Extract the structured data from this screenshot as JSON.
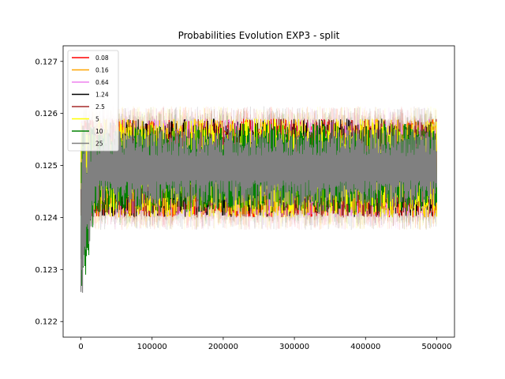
{
  "chart_data": {
    "type": "line",
    "title": "Probabilities Evolution EXP3  - split",
    "xlabel": "",
    "ylabel": "",
    "xlim": [
      -25000,
      525000
    ],
    "ylim": [
      0.1217,
      0.1273
    ],
    "x_ticks": [
      0,
      100000,
      200000,
      300000,
      400000,
      500000
    ],
    "x_tick_labels": [
      "0",
      "100000",
      "200000",
      "300000",
      "400000",
      "500000"
    ],
    "y_ticks": [
      0.122,
      0.123,
      0.124,
      0.125,
      0.126,
      0.127
    ],
    "y_tick_labels": [
      "0.122",
      "0.123",
      "0.124",
      "0.125",
      "0.126",
      "0.127"
    ],
    "grid": false,
    "legend_position": "top-left",
    "x_range": [
      0,
      500000
    ],
    "series": [
      {
        "name": "0.08",
        "color": "#ff0000",
        "band": [
          0.124,
          0.1259
        ]
      },
      {
        "name": "0.16",
        "color": "#ffa500",
        "band": [
          0.124,
          0.1259
        ]
      },
      {
        "name": "0.64",
        "color": "#ee82ee",
        "band": [
          0.124,
          0.1259
        ]
      },
      {
        "name": "1.24",
        "color": "#000000",
        "band": [
          0.124,
          0.1259
        ]
      },
      {
        "name": "2.5",
        "color": "#a52a2a",
        "band": [
          0.124,
          0.1259
        ]
      },
      {
        "name": "5",
        "color": "#ffff00",
        "band": [
          0.124,
          0.1259
        ]
      },
      {
        "name": "10",
        "color": "#008000",
        "band": [
          0.1241,
          0.1258
        ]
      },
      {
        "name": "25",
        "color": "#808080",
        "band": [
          0.1242,
          0.1257
        ]
      }
    ]
  }
}
